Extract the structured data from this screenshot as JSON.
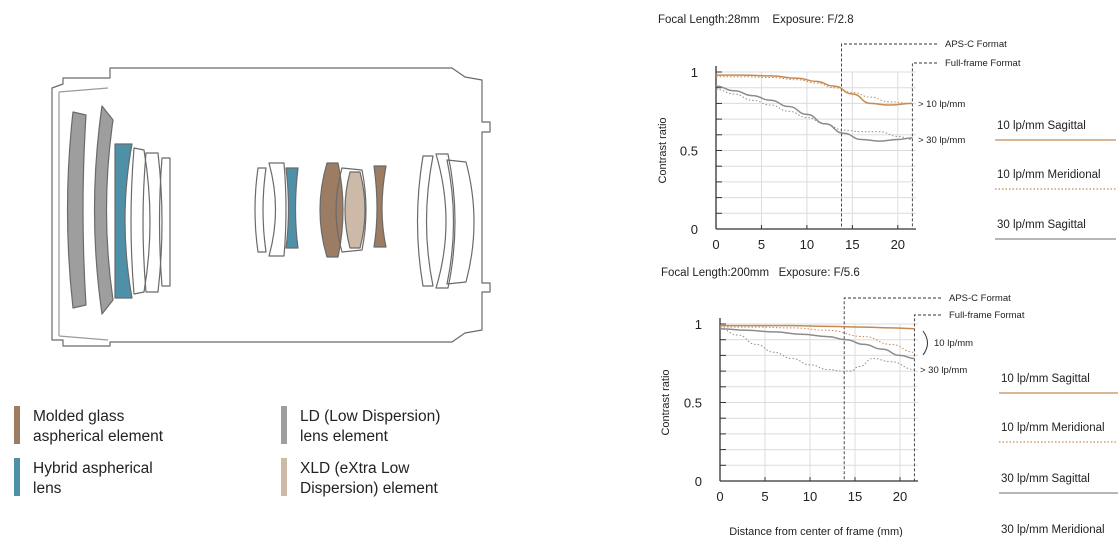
{
  "colors": {
    "molded": "#9c7c62",
    "hybrid": "#4e90a8",
    "ld": "#9e9e9e",
    "xld": "#cdb9a8",
    "sagittal_10": "#c58a52",
    "meridional_10": "#c58a52",
    "sagittal_30": "#8c8c8c",
    "meridional_30": "#8c8c8c",
    "outline": "#6a6a6a"
  },
  "legend": [
    {
      "color_key": "molded",
      "line1": "Molded glass",
      "line2": "aspherical element"
    },
    {
      "color_key": "hybrid",
      "line1": "Hybrid aspherical",
      "line2": "lens"
    },
    {
      "color_key": "ld",
      "line1": "LD (Low Dispersion)",
      "line2": "lens element"
    },
    {
      "color_key": "xld",
      "line1": "XLD (eXtra Low",
      "line2": "Dispersion) element"
    }
  ],
  "chart_data": [
    {
      "type": "line",
      "header": "Focal Length:28mm    Exposure: F/2.8",
      "xlabel": "",
      "ylabel": "Contrast ratio",
      "xlim": [
        0,
        22
      ],
      "ylim": [
        0,
        1
      ],
      "x_ticks": [
        "0",
        "5",
        "10",
        "15",
        "20"
      ],
      "y_ticks": [
        "0",
        "0.5",
        "1"
      ],
      "grid": true,
      "markers": [
        {
          "label": "APS-C Format",
          "x": 13.8
        },
        {
          "label": "Full-frame Format",
          "x": 21.6
        }
      ],
      "group_labels": [
        "> 10 lp/mm",
        "> 30 lp/mm"
      ],
      "series": [
        {
          "name": "10 lp/mm Sagittal",
          "style": "solid",
          "color_key": "sagittal_10",
          "x": [
            0,
            3,
            6,
            9,
            11,
            13,
            15,
            17,
            19,
            21.6
          ],
          "y": [
            0.98,
            0.98,
            0.975,
            0.96,
            0.94,
            0.91,
            0.86,
            0.8,
            0.79,
            0.8
          ]
        },
        {
          "name": "10 lp/mm Meridional",
          "style": "dotted",
          "color_key": "meridional_10",
          "x": [
            0,
            3,
            6,
            9,
            11,
            13,
            15,
            17,
            19,
            21.6
          ],
          "y": [
            0.97,
            0.97,
            0.965,
            0.95,
            0.93,
            0.9,
            0.87,
            0.84,
            0.81,
            0.8
          ]
        },
        {
          "name": "30 lp/mm Sagittal",
          "style": "solid",
          "color_key": "sagittal_30",
          "x": [
            0,
            2,
            4,
            6,
            8,
            10,
            12,
            14,
            16,
            18,
            20,
            21.6
          ],
          "y": [
            0.91,
            0.88,
            0.85,
            0.82,
            0.78,
            0.73,
            0.67,
            0.61,
            0.57,
            0.56,
            0.57,
            0.58
          ]
        },
        {
          "name": "30 lp/mm Meridional",
          "style": "dotted",
          "color_key": "meridional_30",
          "x": [
            0,
            2,
            4,
            6,
            8,
            10,
            12,
            14,
            16,
            18,
            20,
            21.6
          ],
          "y": [
            0.89,
            0.86,
            0.82,
            0.79,
            0.75,
            0.71,
            0.67,
            0.63,
            0.62,
            0.62,
            0.59,
            0.57
          ]
        }
      ]
    },
    {
      "type": "line",
      "header": "Focal Length:200mm   Exposure: F/5.6",
      "xlabel": "Distance from center of frame (mm)",
      "ylabel": "Contrast ratio",
      "xlim": [
        0,
        22
      ],
      "ylim": [
        0,
        1
      ],
      "x_ticks": [
        "0",
        "5",
        "10",
        "15",
        "20"
      ],
      "y_ticks": [
        "0",
        "0.5",
        "1"
      ],
      "grid": true,
      "markers": [
        {
          "label": "APS-C Format",
          "x": 13.8
        },
        {
          "label": "Full-frame Format",
          "x": 21.6
        }
      ],
      "group_labels": [
        "10 lp/mm",
        "> 30 lp/mm"
      ],
      "series": [
        {
          "name": "10 lp/mm Sagittal",
          "style": "solid",
          "color_key": "sagittal_10",
          "x": [
            0,
            4,
            8,
            12,
            16,
            19,
            21.6
          ],
          "y": [
            0.99,
            0.99,
            0.99,
            0.985,
            0.98,
            0.975,
            0.97
          ]
        },
        {
          "name": "10 lp/mm Meridional",
          "style": "dotted",
          "color_key": "meridional_10",
          "x": [
            0,
            4,
            8,
            12,
            16,
            19,
            21.6
          ],
          "y": [
            0.98,
            0.98,
            0.975,
            0.96,
            0.92,
            0.87,
            0.82
          ]
        },
        {
          "name": "30 lp/mm Sagittal",
          "style": "solid",
          "color_key": "sagittal_30",
          "x": [
            0,
            3,
            6,
            9,
            12,
            14,
            16,
            18,
            20,
            21.6
          ],
          "y": [
            0.97,
            0.96,
            0.95,
            0.935,
            0.92,
            0.9,
            0.87,
            0.84,
            0.8,
            0.78
          ]
        },
        {
          "name": "30 lp/mm Meridional",
          "style": "dotted",
          "color_key": "meridional_30",
          "x": [
            0,
            2,
            4,
            6,
            8,
            10,
            12,
            13.5,
            14.5,
            15.5,
            17,
            19,
            21.6
          ],
          "y": [
            0.97,
            0.93,
            0.87,
            0.82,
            0.78,
            0.74,
            0.71,
            0.7,
            0.7,
            0.73,
            0.78,
            0.76,
            0.71
          ]
        }
      ]
    }
  ],
  "series_keys": [
    [
      "10 lp/mm Sagittal",
      "10 lp/mm Meridional",
      "30 lp/mm Sagittal"
    ],
    [
      "10 lp/mm Sagittal",
      "10 lp/mm Meridional",
      "30 lp/mm Sagittal",
      "30 lp/mm Meridional"
    ]
  ]
}
